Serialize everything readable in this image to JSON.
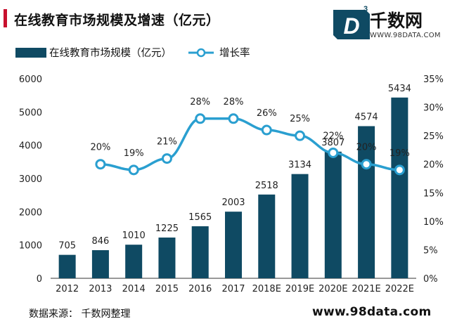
{
  "title": "在线教育市场规模及增速（亿元）",
  "brand": {
    "badge": "D",
    "badge_sup": "3",
    "name": "千数网",
    "url": "WWW.98DATA.COM"
  },
  "footer": {
    "source": "数据来源：  千数网整理",
    "website": "www.98data.com"
  },
  "chart_data": {
    "type": "bar",
    "categories": [
      "2012",
      "2013",
      "2014",
      "2015",
      "2016",
      "2017",
      "2018E",
      "2019E",
      "2020E",
      "2021E",
      "2022E"
    ],
    "series": [
      {
        "name": "在线教育市场规模（亿元）",
        "type": "bar",
        "axis": "left",
        "values": [
          705,
          846,
          1010,
          1225,
          1565,
          2003,
          2518,
          3134,
          3807,
          4574,
          5434
        ],
        "labels": [
          "705",
          "846",
          "1010",
          "1225",
          "1565",
          "2003",
          "2518",
          "3134",
          "3807",
          "4574",
          "5434"
        ],
        "color": "#0f4a63"
      },
      {
        "name": "增长率",
        "type": "line",
        "axis": "right",
        "values": [
          null,
          20,
          19,
          21,
          28,
          28,
          26,
          25,
          22,
          20,
          19
        ],
        "labels": [
          "",
          "20%",
          "19%",
          "21%",
          "28%",
          "28%",
          "26%",
          "25%",
          "22%",
          "20%",
          "19%"
        ],
        "color": "#2a9fd0"
      }
    ],
    "y_left": {
      "min": 0,
      "max": 6000,
      "ticks": [
        "0",
        "1000",
        "2000",
        "3000",
        "4000",
        "5000",
        "6000"
      ]
    },
    "y_right": {
      "min": 0,
      "max": 35,
      "ticks": [
        "0%",
        "5%",
        "10%",
        "15%",
        "20%",
        "25%",
        "30%",
        "35%"
      ]
    },
    "grid": false,
    "legend": "top-left"
  }
}
